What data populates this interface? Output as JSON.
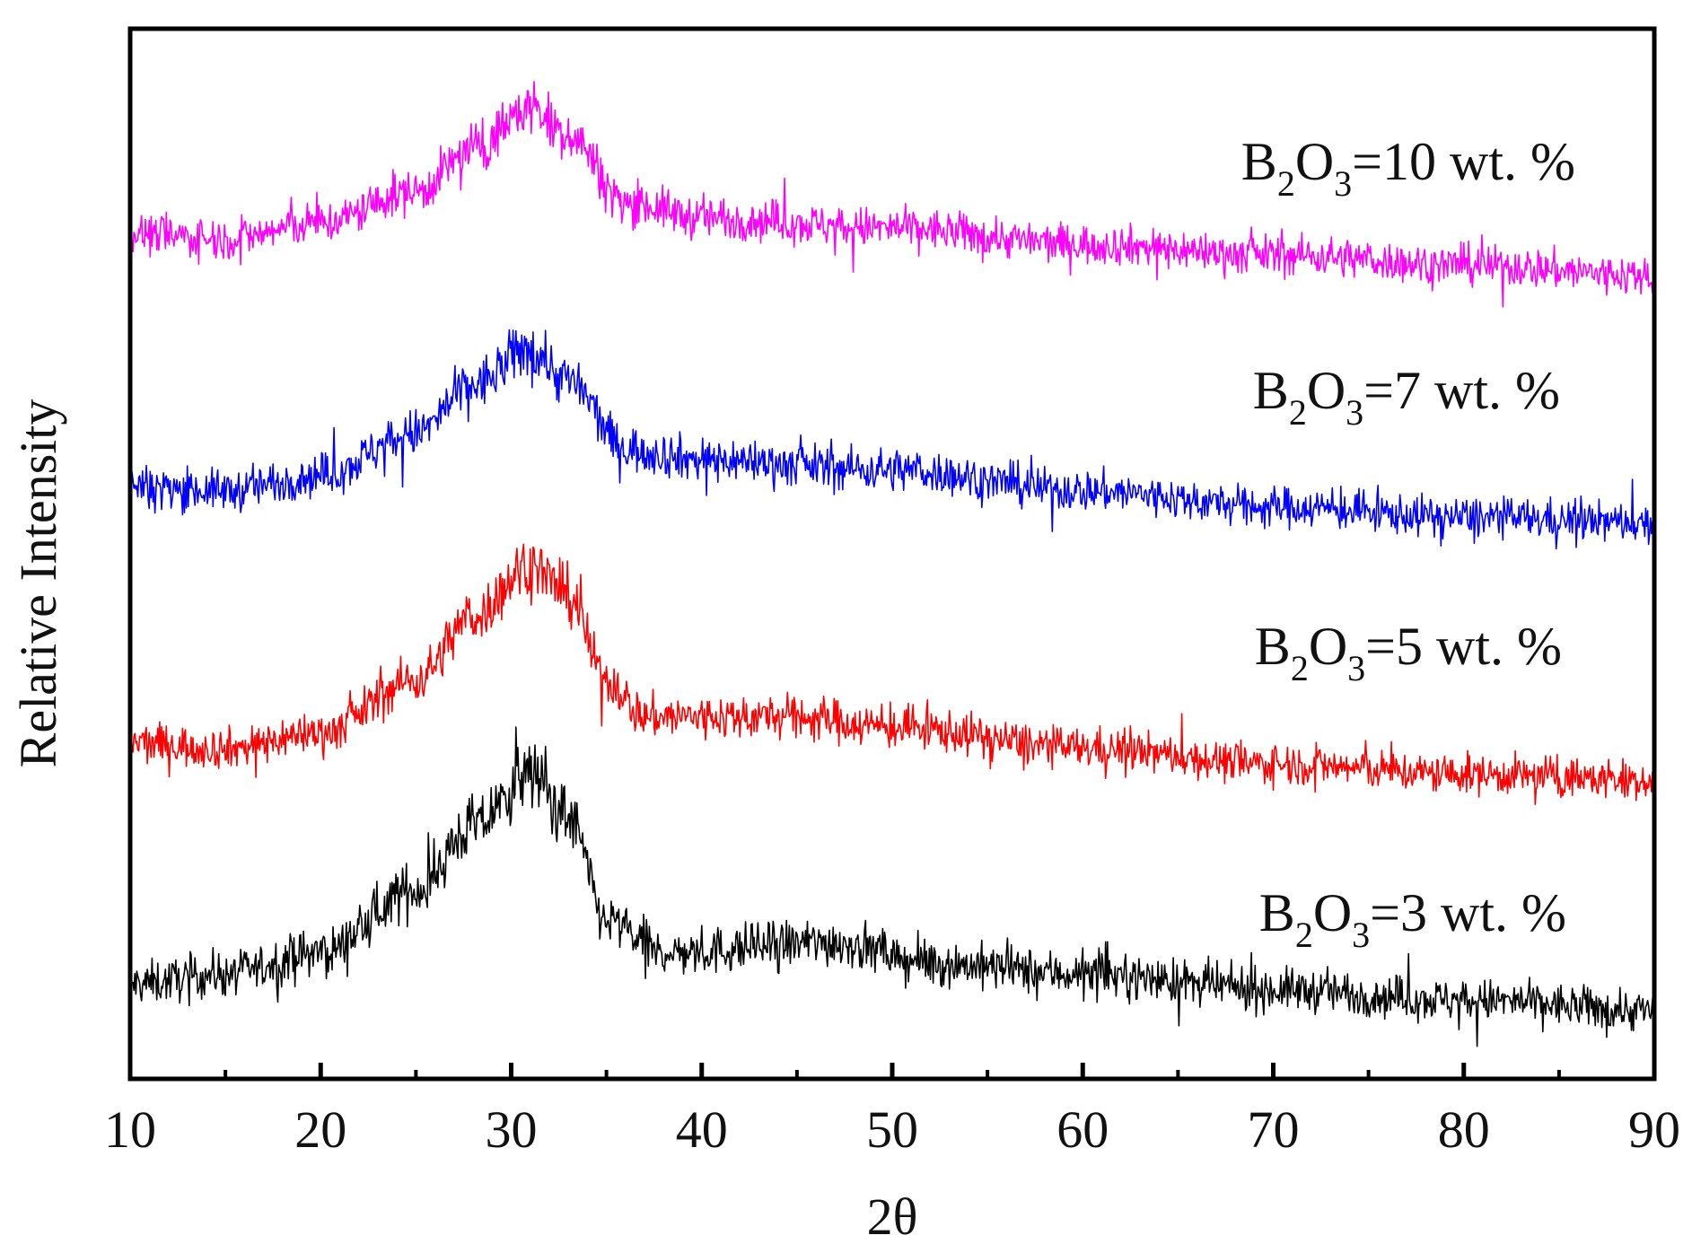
{
  "chart_data": {
    "type": "line",
    "title": "",
    "xlabel": "2θ",
    "ylabel": "Relative Intensity",
    "xlim": [
      10,
      90
    ],
    "x_major_ticks": [
      10,
      20,
      30,
      40,
      50,
      60,
      70,
      80,
      90
    ],
    "x_tick_labels": [
      "10",
      "20",
      "30",
      "40",
      "50",
      "60",
      "70",
      "80",
      "90"
    ],
    "x_minor_ticks": [
      15,
      25,
      35,
      45,
      55,
      65,
      75,
      85
    ],
    "y_tick_labels": [],
    "grid": false,
    "legend": "inline labels on the right, above each curve",
    "series": [
      {
        "name": "B2O3=3 wt. %",
        "label_main": "B",
        "label_sub1": "2",
        "label_mid": "O",
        "label_sub2": "3",
        "label_rest": "=3 wt. %",
        "color": "#000000",
        "baseline": 0.08,
        "profile": [
          [
            10,
            0.09
          ],
          [
            15,
            0.1
          ],
          [
            20,
            0.12
          ],
          [
            25,
            0.18
          ],
          [
            28,
            0.24
          ],
          [
            31,
            0.29
          ],
          [
            33,
            0.25
          ],
          [
            35,
            0.15
          ],
          [
            38,
            0.12
          ],
          [
            47,
            0.13
          ],
          [
            52,
            0.11
          ],
          [
            60,
            0.1
          ],
          [
            70,
            0.085
          ],
          [
            80,
            0.075
          ],
          [
            90,
            0.065
          ]
        ],
        "noise": 0.018
      },
      {
        "name": "B2O3=5 wt. %",
        "label_main": "B",
        "label_sub1": "2",
        "label_mid": "O",
        "label_sub2": "3",
        "label_rest": "=5 wt. %",
        "color": "#ff0000",
        "baseline": 0.31,
        "profile": [
          [
            10,
            0.32
          ],
          [
            15,
            0.315
          ],
          [
            20,
            0.33
          ],
          [
            25,
            0.38
          ],
          [
            28,
            0.44
          ],
          [
            31,
            0.49
          ],
          [
            33,
            0.46
          ],
          [
            35,
            0.38
          ],
          [
            37,
            0.345
          ],
          [
            45,
            0.345
          ],
          [
            50,
            0.335
          ],
          [
            60,
            0.315
          ],
          [
            70,
            0.3
          ],
          [
            80,
            0.29
          ],
          [
            90,
            0.285
          ]
        ],
        "noise": 0.017
      },
      {
        "name": "B2O3=7 wt. %",
        "label_main": "B",
        "label_sub1": "2",
        "label_mid": "O",
        "label_sub2": "3",
        "label_rest": "=7 wt. %",
        "color": "#0000ff",
        "baseline": 0.55,
        "profile": [
          [
            10,
            0.565
          ],
          [
            15,
            0.56
          ],
          [
            20,
            0.575
          ],
          [
            25,
            0.615
          ],
          [
            28,
            0.66
          ],
          [
            31,
            0.695
          ],
          [
            33,
            0.665
          ],
          [
            36,
            0.6
          ],
          [
            40,
            0.59
          ],
          [
            50,
            0.58
          ],
          [
            60,
            0.56
          ],
          [
            70,
            0.545
          ],
          [
            80,
            0.535
          ],
          [
            90,
            0.53
          ]
        ],
        "noise": 0.017
      },
      {
        "name": "B2O3=10 wt. %",
        "label_main": "B",
        "label_sub1": "2",
        "label_mid": "O",
        "label_sub2": "3",
        "label_rest": "=10 wt. %",
        "color": "#ff00ff",
        "baseline": 0.8,
        "profile": [
          [
            10,
            0.805
          ],
          [
            15,
            0.8
          ],
          [
            20,
            0.815
          ],
          [
            25,
            0.845
          ],
          [
            28,
            0.885
          ],
          [
            31,
            0.925
          ],
          [
            33,
            0.9
          ],
          [
            36,
            0.835
          ],
          [
            40,
            0.82
          ],
          [
            50,
            0.81
          ],
          [
            60,
            0.795
          ],
          [
            70,
            0.785
          ],
          [
            80,
            0.775
          ],
          [
            90,
            0.765
          ]
        ],
        "noise": 0.017
      }
    ]
  }
}
